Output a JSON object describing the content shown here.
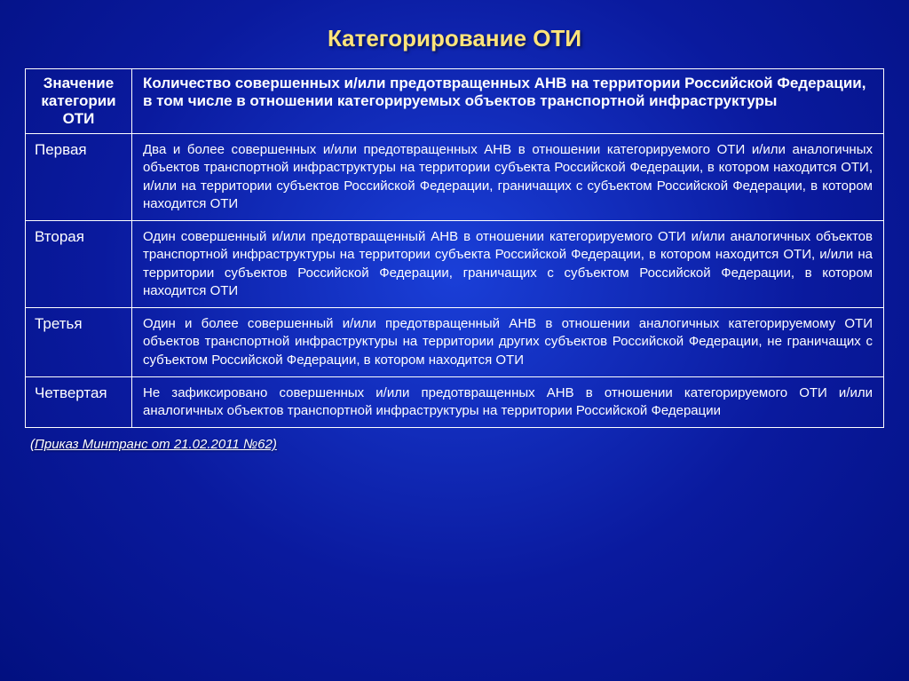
{
  "colors": {
    "background_gradient_inner": "#1a3fd8",
    "background_gradient_mid": "#0a1a9e",
    "background_gradient_outer": "#021080",
    "title_color": "#ffe47a",
    "text_color": "#ffffff",
    "border_color": "#ffffff"
  },
  "title": "Категорирование  ОТИ",
  "table": {
    "header_left": "Значение категории ОТИ",
    "header_right": "Количество совершенных и/или предотвращенных АНВ на территории Российской Федерации, в том числе в отношении категорируемых объектов транспортной инфраструктуры",
    "rows": [
      {
        "cat": "Первая",
        "desc": "Два и более совершенных и/или предотвращенных АНВ в отношении категорируемого ОТИ и/или аналогичных объектов транспортной инфраструктуры на территории субъекта Российской Федерации, в котором находится ОТИ, и/или на территории субъектов Российской Федерации, граничащих с субъектом Российской Федерации, в котором находится ОТИ"
      },
      {
        "cat": "Вторая",
        "desc": "Один совершенный и/или предотвращенный АНВ в отношении категорируемого ОТИ и/или аналогичных объектов транспортной инфраструктуры на территории субъекта Российской Федерации, в котором находится ОТИ, и/или на территории субъектов Российской Федерации, граничащих с субъектом Российской Федерации, в котором находится ОТИ"
      },
      {
        "cat": "Третья",
        "desc": "Один и более совершенный и/или предотвращенный АНВ в отношении аналогичных категорируемому ОТИ объектов транспортной инфраструктуры на территории других субъектов Российской Федерации, не граничащих с субъектом Российской Федерации, в котором находится ОТИ"
      },
      {
        "cat": "Четвертая",
        "desc": "Не зафиксировано совершенных и/или предотвращенных АНВ в отношении категорируемого ОТИ и/или аналогичных объектов транспортной инфраструктуры на территории Российской Федерации"
      }
    ]
  },
  "footer": "(Приказ Минтранс от 21.02.2011 №62)"
}
